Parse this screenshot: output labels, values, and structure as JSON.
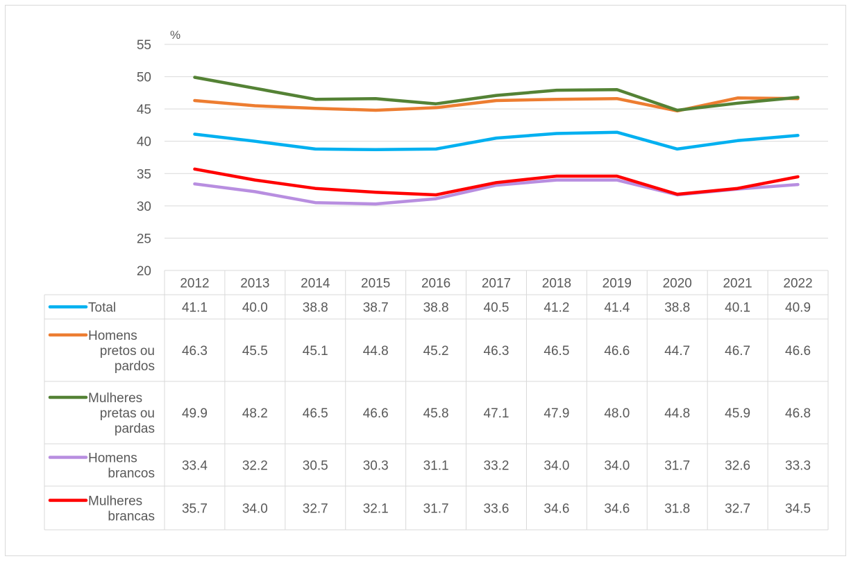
{
  "chart_data": {
    "type": "line",
    "unit": "%",
    "ylim": [
      20,
      55
    ],
    "yticks": [
      "55",
      "50",
      "45",
      "40",
      "35",
      "30",
      "25",
      "20"
    ],
    "grid": true,
    "categories": [
      "2012",
      "2013",
      "2014",
      "2015",
      "2016",
      "2017",
      "2018",
      "2019",
      "2020",
      "2021",
      "2022"
    ],
    "series": [
      {
        "name": "Total",
        "label_lines": [
          "Total"
        ],
        "color": "#00b0f0",
        "values": [
          41.1,
          40.0,
          38.8,
          38.7,
          38.8,
          40.5,
          41.2,
          41.4,
          38.8,
          40.1,
          40.9
        ]
      },
      {
        "name": "Homens pretos ou pardos",
        "label_lines": [
          "Homens",
          "pretos ou",
          "pardos"
        ],
        "color": "#ed7d31",
        "values": [
          46.3,
          45.5,
          45.1,
          44.8,
          45.2,
          46.3,
          46.5,
          46.6,
          44.7,
          46.7,
          46.6
        ]
      },
      {
        "name": "Mulheres pretas ou pardas",
        "label_lines": [
          "Mulheres",
          "pretas ou",
          "pardas"
        ],
        "color": "#548235",
        "values": [
          49.9,
          48.2,
          46.5,
          46.6,
          45.8,
          47.1,
          47.9,
          48.0,
          44.8,
          45.9,
          46.8
        ]
      },
      {
        "name": "Homens brancos",
        "label_lines": [
          "Homens",
          "brancos"
        ],
        "color": "#b88ee0",
        "values": [
          33.4,
          32.2,
          30.5,
          30.3,
          31.1,
          33.2,
          34.0,
          34.0,
          31.7,
          32.6,
          33.3
        ]
      },
      {
        "name": "Mulheres brancas",
        "label_lines": [
          "Mulheres",
          "brancas"
        ],
        "color": "#ff0000",
        "values": [
          35.7,
          34.0,
          32.7,
          32.1,
          31.7,
          33.6,
          34.6,
          34.6,
          31.8,
          32.7,
          34.5
        ]
      }
    ]
  }
}
